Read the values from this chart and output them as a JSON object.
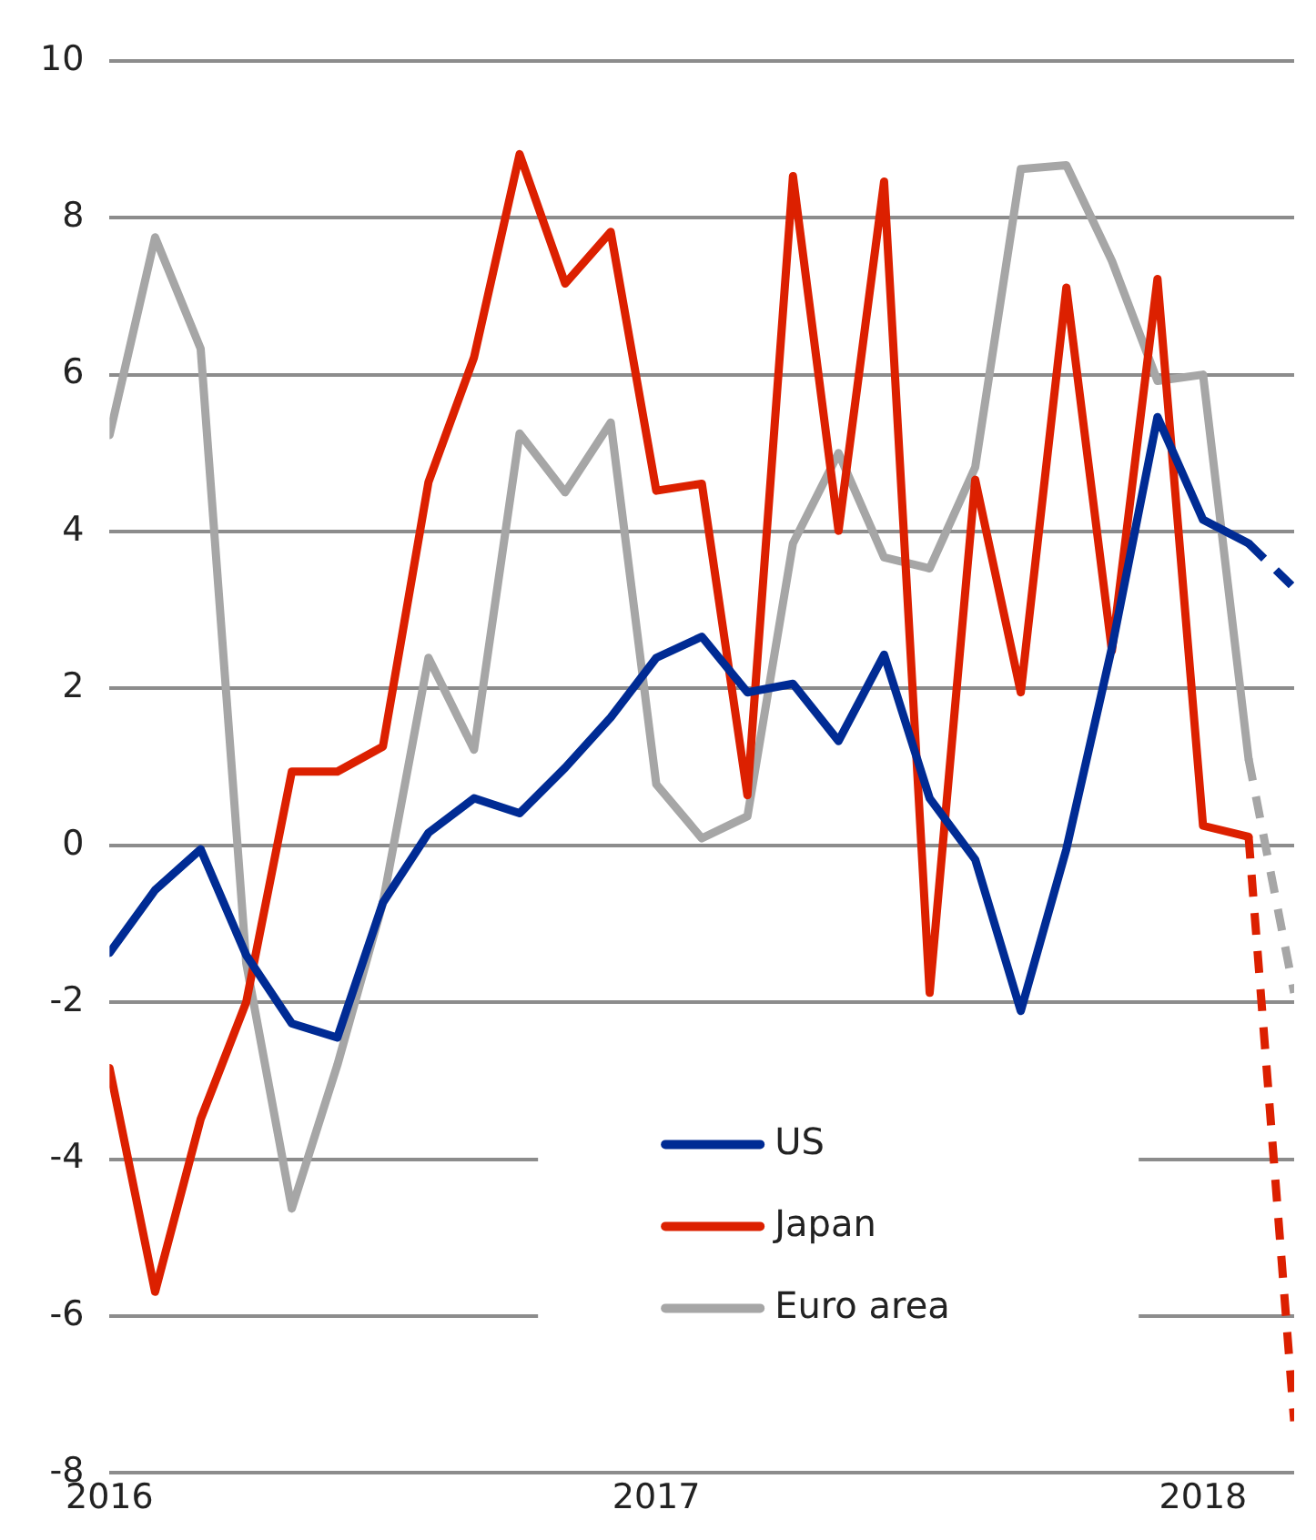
{
  "chart_data": {
    "type": "line",
    "x": [
      "2016-01",
      "2016-02",
      "2016-03",
      "2016-04",
      "2016-05",
      "2016-06",
      "2016-07",
      "2016-08",
      "2016-09",
      "2016-10",
      "2016-11",
      "2016-12",
      "2017-01",
      "2017-02",
      "2017-03",
      "2017-04",
      "2017-05",
      "2017-06",
      "2017-07",
      "2017-08",
      "2017-09",
      "2017-10",
      "2017-11",
      "2017-12",
      "2018-01",
      "2018-02"
    ],
    "series": [
      {
        "name": "US",
        "color": "#002b94",
        "values": [
          -1.37,
          -0.57,
          -0.05,
          -1.4,
          -2.27,
          -2.45,
          -0.73,
          0.16,
          0.6,
          0.41,
          0.99,
          1.63,
          2.39,
          2.66,
          1.95,
          2.06,
          1.33,
          2.43,
          0.6,
          -0.18,
          -2.11,
          -0.05,
          2.52,
          5.46,
          4.15,
          3.85
        ]
      },
      {
        "name": "Japan",
        "color": "#dc2000",
        "values": [
          -2.84,
          -5.69,
          -3.49,
          -2.0,
          0.94,
          0.94,
          1.26,
          4.63,
          6.22,
          8.81,
          7.16,
          7.82,
          4.52,
          4.61,
          0.64,
          8.53,
          4.01,
          8.46,
          -1.88,
          4.66,
          1.95,
          7.11,
          2.48,
          7.22,
          0.25,
          0.11
        ]
      },
      {
        "name": "Euro area",
        "color": "#a6a6a6",
        "values": [
          5.23,
          7.75,
          6.33,
          -1.5,
          -4.63,
          -2.8,
          -0.73,
          2.39,
          1.22,
          5.25,
          4.5,
          5.39,
          0.78,
          0.09,
          0.37,
          3.85,
          5.0,
          3.67,
          3.53,
          4.82,
          8.62,
          8.67,
          7.45,
          5.92,
          6.0,
          1.1
        ]
      },
      {
        "color": "#002b94",
        "line_style": "dashed",
        "x": [
          "2018-02",
          "2018-03"
        ],
        "values": [
          3.85,
          3.28
        ]
      },
      {
        "color": "#dc2000",
        "line_style": "dashed",
        "x": [
          "2018-02",
          "2018-03"
        ],
        "values": [
          0.11,
          -7.34
        ]
      },
      {
        "color": "#a6a6a6",
        "line_style": "dashed",
        "x": [
          "2018-02",
          "2018-03"
        ],
        "values": [
          1.1,
          -1.88
        ]
      }
    ],
    "xlim": [
      "2016-01",
      "2018-03"
    ],
    "xticks": [
      {
        "value": "2016-01",
        "label": "2016"
      },
      {
        "value": "2017-01",
        "label": "2017"
      },
      {
        "value": "2018-01",
        "label": "2018"
      }
    ],
    "ylim": [
      -8,
      10
    ],
    "yticks": [
      -8,
      -6,
      -4,
      -2,
      0,
      2,
      4,
      6,
      8,
      10
    ],
    "grid": "y",
    "legend": "bottom",
    "line_style": "solid"
  }
}
